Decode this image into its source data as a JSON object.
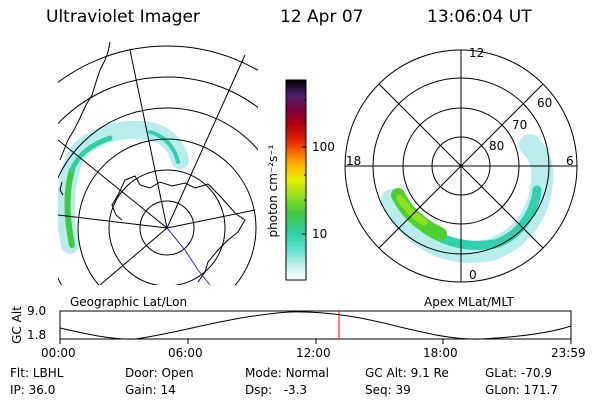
{
  "header": {
    "instrument": "Ultraviolet Imager",
    "date": "12 Apr 07",
    "time": "13:06:04 UT"
  },
  "colorbar": {
    "label": "photon cm⁻²s⁻¹",
    "ticks": [
      "100",
      "10"
    ]
  },
  "left_panel": {
    "caption": "Geographic Lat/Lon"
  },
  "right_panel": {
    "caption": "Apex MLat/MLT",
    "mlt_labels": {
      "top": "12",
      "left": "18",
      "right": "6",
      "bottom": "0"
    },
    "lat_labels": [
      "60",
      "70",
      "80"
    ]
  },
  "altitude_plot": {
    "label": "GC Alt",
    "ticks": [
      "9.0",
      "1.8"
    ],
    "time_ticks": [
      "00:00",
      "06:00",
      "12:00",
      "18:00",
      "23:59"
    ],
    "marker_color": "#ff0000"
  },
  "info": {
    "row1": [
      {
        "key": "Flt:",
        "value": "LBHL"
      },
      {
        "key": "Door:",
        "value": "Open"
      },
      {
        "key": "Mode:",
        "value": "Normal"
      },
      {
        "key": "GC Alt:",
        "value": "9.1 Re"
      },
      {
        "key": "GLat:",
        "value": "-70.9"
      }
    ],
    "row2": [
      {
        "key": "IP:",
        "value": "36.0"
      },
      {
        "key": "Gain:",
        "value": "14"
      },
      {
        "key": "Dsp:",
        "value": "-3.3"
      },
      {
        "key": "Seq:",
        "value": "39"
      },
      {
        "key": "GLon:",
        "value": "171.7"
      }
    ]
  },
  "colors": {
    "colorbar": [
      "#ffffff",
      "#c8f0f0",
      "#60e0d0",
      "#30d0a0",
      "#40c840",
      "#90e020",
      "#e8f000",
      "#ffc000",
      "#ff8000",
      "#e02000",
      "#b00010",
      "#800040",
      "#600080",
      "#301060",
      "#000000"
    ]
  }
}
